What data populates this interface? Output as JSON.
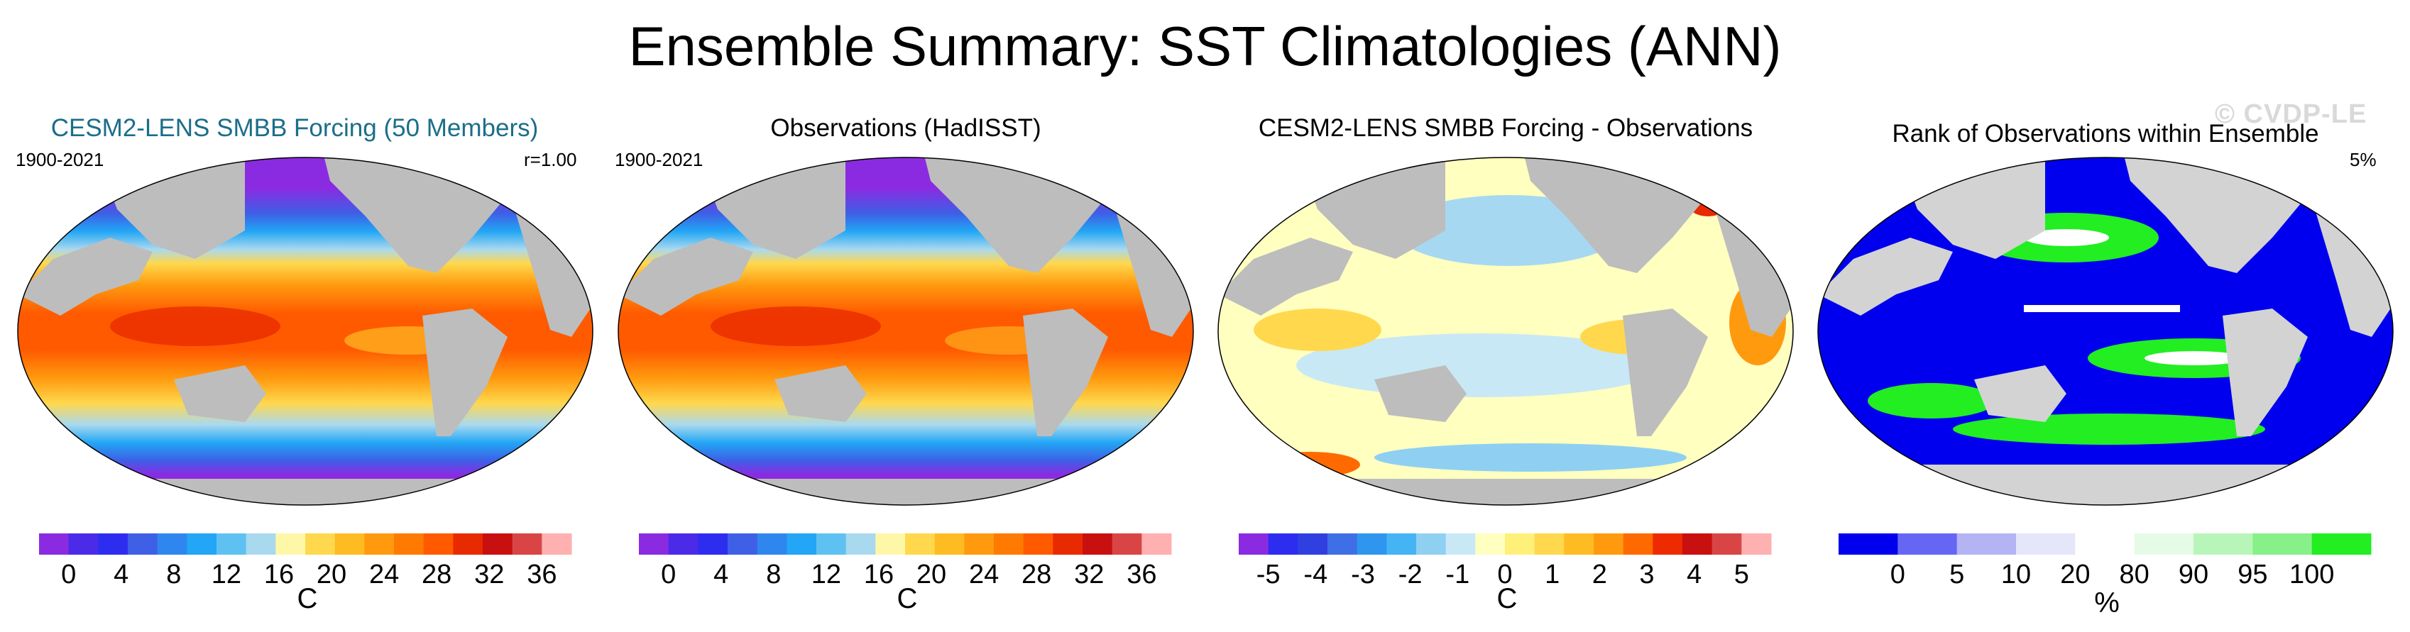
{
  "figure": {
    "title": "Ensemble Summary: SST Climatologies (ANN)",
    "watermark": "© CVDP-LE"
  },
  "chart_data": [
    {
      "type": "heatmap",
      "title": "CESM2-LENS SMBB Forcing (50 Members)",
      "period": "1900-2021",
      "stat": "r=1.00",
      "colorbar": {
        "unit": "C",
        "tick_labels": [
          "0",
          "4",
          "8",
          "12",
          "16",
          "20",
          "24",
          "28",
          "32",
          "36"
        ],
        "colors": [
          "#8a2be2",
          "#4b2be8",
          "#2d2df0",
          "#3e5fe6",
          "#2f86ef",
          "#22a6f5",
          "#5fc1f2",
          "#a9d9ef",
          "#fff7a8",
          "#ffd84d",
          "#ffbb22",
          "#ff9a0f",
          "#ff7a00",
          "#ff5a00",
          "#e82a00",
          "#c81010",
          "#d94545",
          "#ffb0b0"
        ]
      }
    },
    {
      "type": "heatmap",
      "title": "Observations (HadISST)",
      "period": "1900-2021",
      "colorbar": {
        "unit": "C",
        "tick_labels": [
          "0",
          "4",
          "8",
          "12",
          "16",
          "20",
          "24",
          "28",
          "32",
          "36"
        ],
        "colors": [
          "#8a2be2",
          "#4b2be8",
          "#2d2df0",
          "#3e5fe6",
          "#2f86ef",
          "#22a6f5",
          "#5fc1f2",
          "#a9d9ef",
          "#fff7a8",
          "#ffd84d",
          "#ffbb22",
          "#ff9a0f",
          "#ff7a00",
          "#ff5a00",
          "#e82a00",
          "#c81010",
          "#d94545",
          "#ffb0b0"
        ]
      }
    },
    {
      "type": "heatmap",
      "title": "CESM2-LENS SMBB Forcing - Observations",
      "colorbar": {
        "unit": "C",
        "tick_labels": [
          "-5",
          "-4",
          "-3",
          "-2",
          "-1",
          "0",
          "1",
          "2",
          "3",
          "4",
          "5"
        ],
        "colors": [
          "#8a2be2",
          "#2d2df0",
          "#3040e0",
          "#3e6fe6",
          "#2f96ef",
          "#44b4f5",
          "#8fd0f2",
          "#c9e8f5",
          "#ffffc0",
          "#fff07a",
          "#ffd84d",
          "#ffbb22",
          "#ff9a0f",
          "#ff6a00",
          "#ee2a00",
          "#c81010",
          "#d94545",
          "#ffb0b0"
        ]
      }
    },
    {
      "type": "heatmap",
      "title": "Rank of Observations within Ensemble",
      "stat": "5%",
      "colorbar": {
        "unit": "%",
        "tick_labels": [
          "0",
          "5",
          "10",
          "20",
          "80",
          "90",
          "95",
          "100"
        ],
        "colors": [
          "#0000ee",
          "#6666f5",
          "#b4b4f5",
          "#e6e6fa",
          "#ffffff",
          "#e6fbe6",
          "#b8f5b8",
          "#88f088",
          "#22ee22"
        ]
      }
    }
  ]
}
